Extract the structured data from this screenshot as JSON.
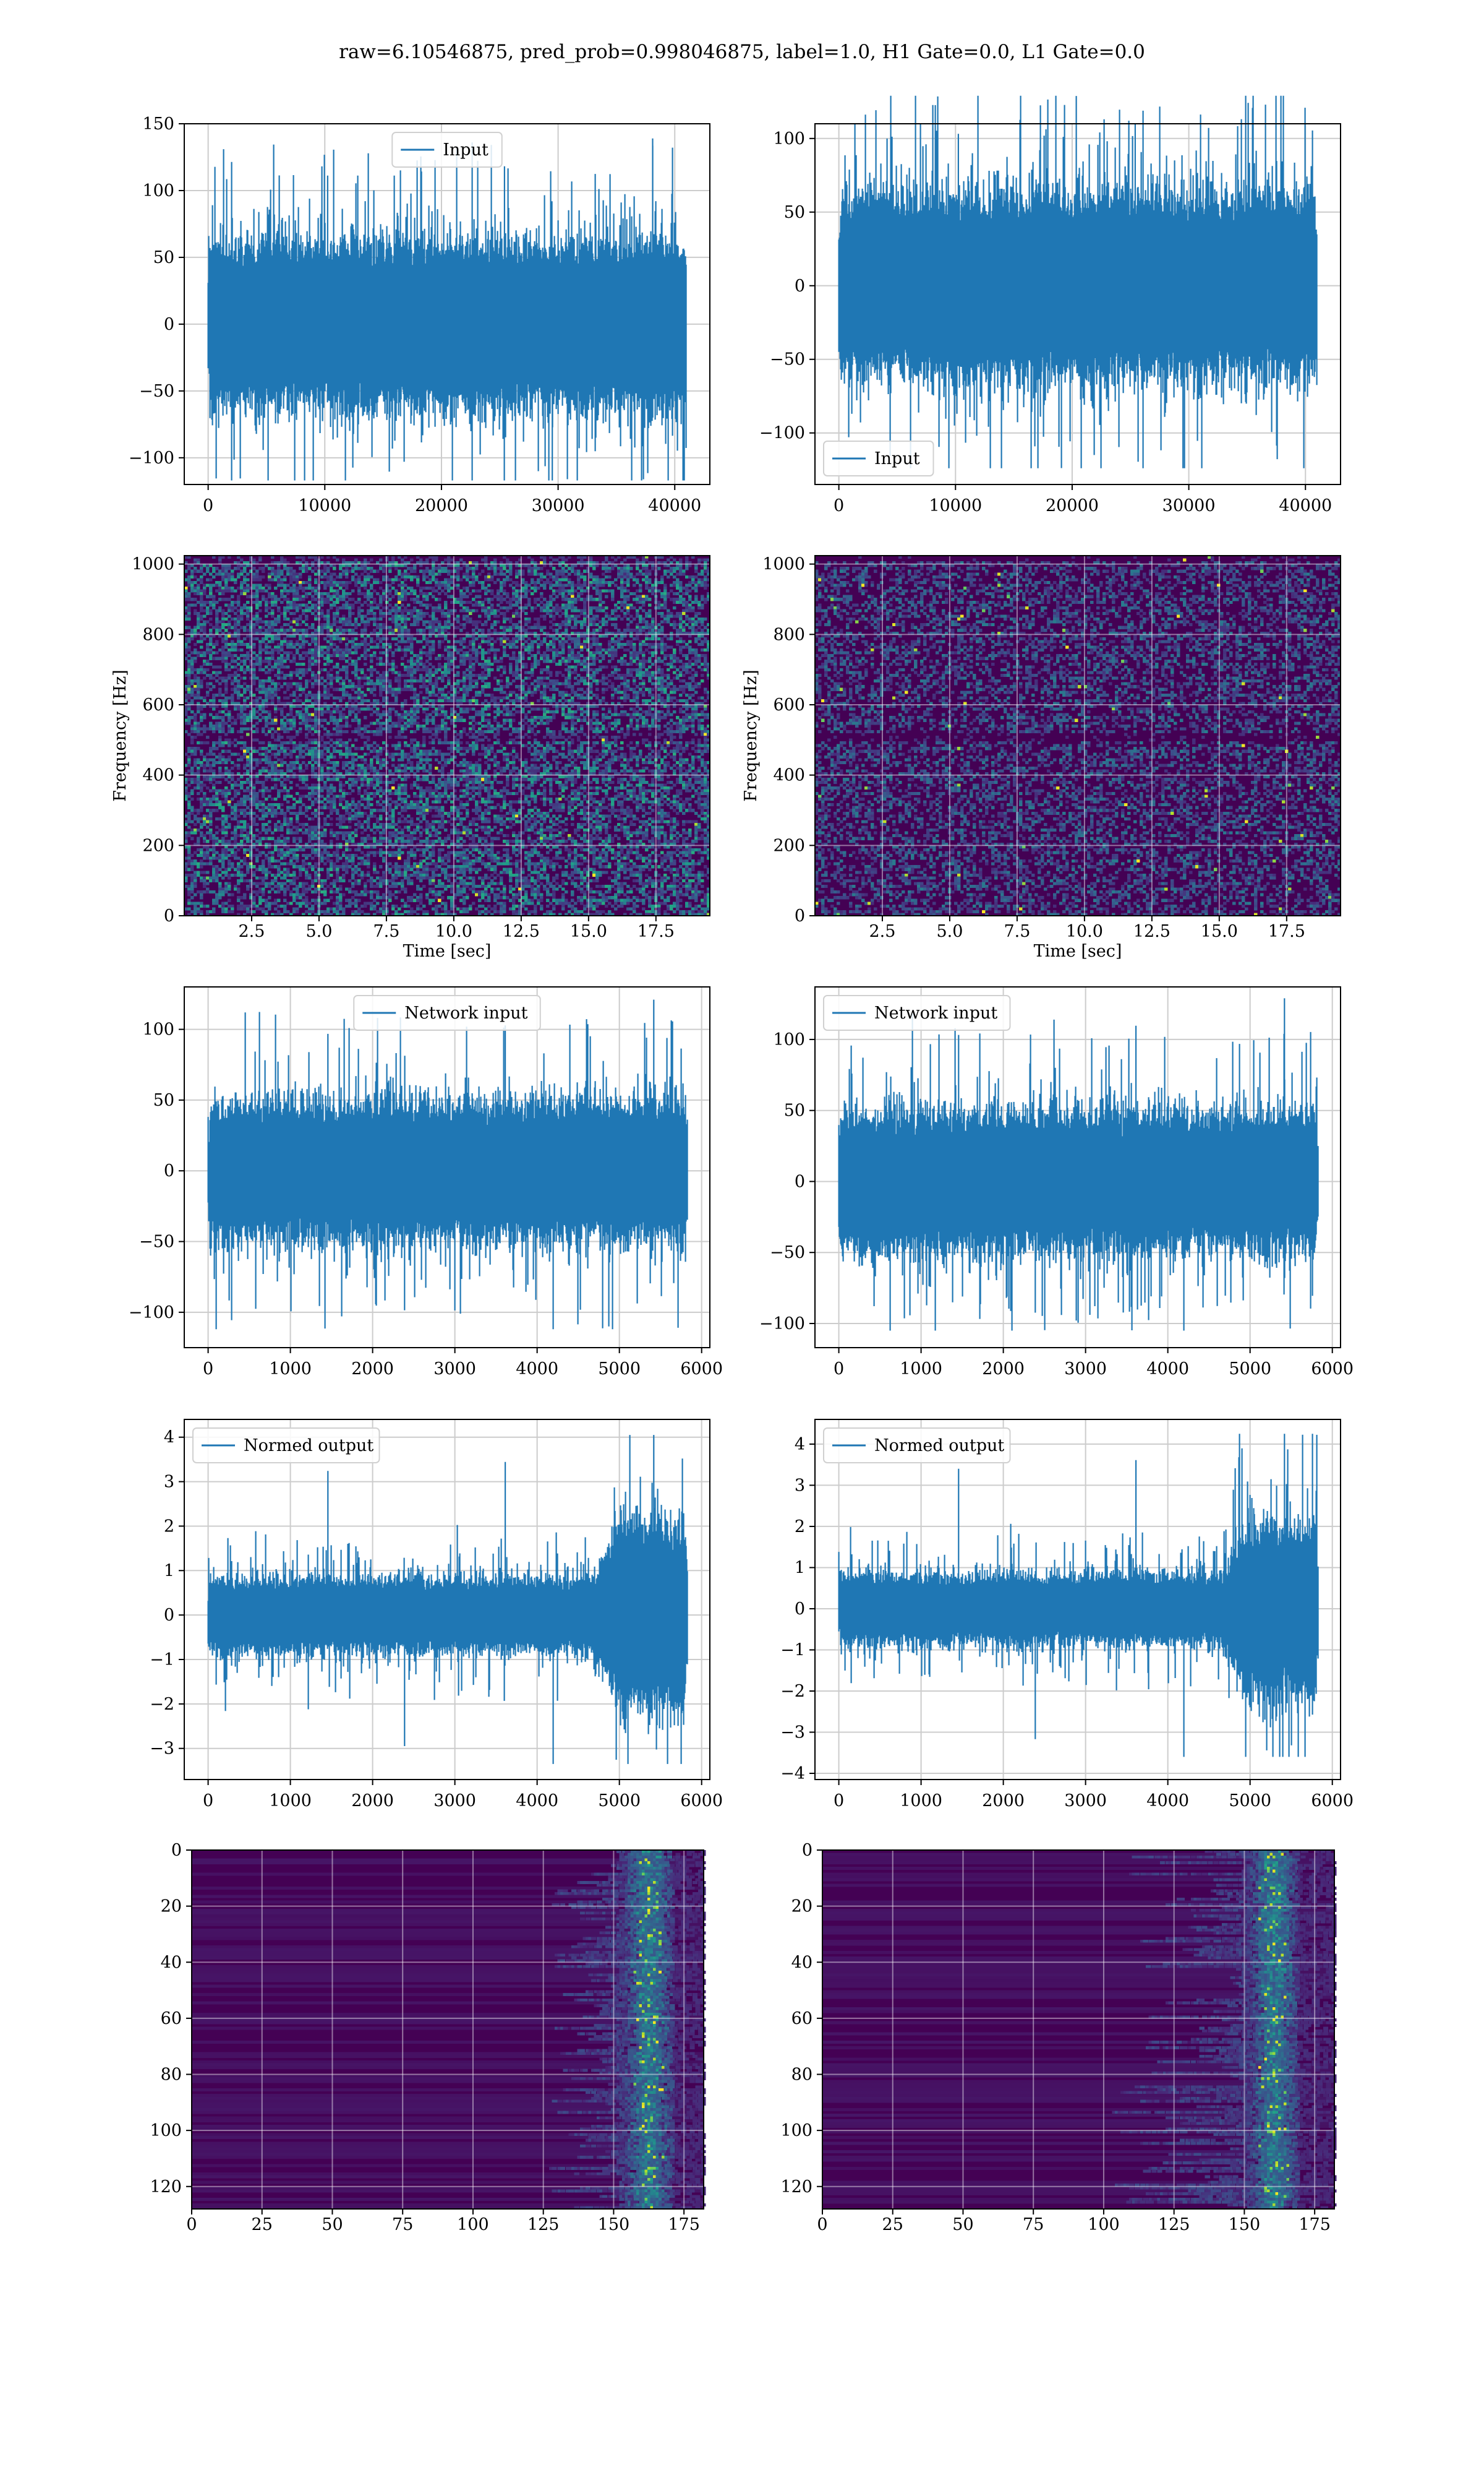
{
  "figure": {
    "title": "raw=6.10546875, pred_prob=0.998046875, label=1.0, H1 Gate=0.0, L1 Gate=0.0"
  },
  "colors": {
    "line": "#1f77b4",
    "grid": "#cccccc",
    "heat_low": "#440154",
    "heat_mid": "#21918c",
    "heat_high": "#fde725"
  },
  "chart_data": [
    {
      "id": "h1-input",
      "type": "line",
      "legend_label": "Input",
      "legend_loc": "upper center",
      "xlim": [
        -2048,
        43008
      ],
      "ylim": [
        -120,
        150
      ],
      "xticks": [
        0,
        10000,
        20000,
        30000,
        40000
      ],
      "yticks": [
        -100,
        -50,
        0,
        50,
        100,
        150
      ],
      "series": [
        {
          "x_start": 0,
          "x_end": 40960,
          "n_points": 40960,
          "band": [
            -45,
            45
          ],
          "spike_max": 139,
          "spike_min": -117
        }
      ]
    },
    {
      "id": "l1-input",
      "type": "line",
      "legend_label": "Input",
      "legend_loc": "lower left",
      "xlim": [
        -2048,
        43008
      ],
      "ylim": [
        -135,
        110
      ],
      "xticks": [
        0,
        10000,
        20000,
        30000,
        40000
      ],
      "yticks": [
        -100,
        -50,
        0,
        50,
        100
      ],
      "series": [
        {
          "x_start": 0,
          "x_end": 40960,
          "n_points": 40960,
          "band": [
            -45,
            45
          ],
          "spike_max": 129,
          "spike_min": -124
        }
      ]
    },
    {
      "id": "h1-spectrogram",
      "type": "heatmap",
      "colormap": "viridis",
      "xlabel": "Time [sec]",
      "ylabel": "Frequency [Hz]",
      "xlim": [
        0,
        19.5
      ],
      "ylim": [
        0,
        1024
      ],
      "xticks": [
        2.5,
        5.0,
        7.5,
        10.0,
        12.5,
        15.0,
        17.5
      ],
      "yticks": [
        0,
        200,
        400,
        600,
        800,
        1000
      ],
      "intensity": "medium"
    },
    {
      "id": "l1-spectrogram",
      "type": "heatmap",
      "colormap": "viridis",
      "xlabel": "Time [sec]",
      "ylabel": "Frequency [Hz]",
      "xlim": [
        0,
        19.5
      ],
      "ylim": [
        0,
        1024
      ],
      "xticks": [
        2.5,
        5.0,
        7.5,
        10.0,
        12.5,
        15.0,
        17.5
      ],
      "yticks": [
        0,
        200,
        400,
        600,
        800,
        1000
      ],
      "intensity": "low"
    },
    {
      "id": "h1-network-input",
      "type": "line",
      "legend_label": "Network input",
      "legend_loc": "upper center",
      "xlim": [
        -290,
        6100
      ],
      "ylim": [
        -125,
        130
      ],
      "xticks": [
        0,
        1000,
        2000,
        3000,
        4000,
        5000,
        6000
      ],
      "yticks": [
        -100,
        -50,
        0,
        50,
        100
      ],
      "series": [
        {
          "x_start": 0,
          "x_end": 5824,
          "n_points": 5824,
          "band": [
            -35,
            35
          ],
          "spike_max": 121,
          "spike_min": -112
        }
      ]
    },
    {
      "id": "l1-network-input",
      "type": "line",
      "legend_label": "Network input",
      "legend_loc": "upper left",
      "xlim": [
        -290,
        6100
      ],
      "ylim": [
        -117,
        137
      ],
      "xticks": [
        0,
        1000,
        2000,
        3000,
        4000,
        5000,
        6000
      ],
      "yticks": [
        -100,
        -50,
        0,
        50,
        100
      ],
      "series": [
        {
          "x_start": 0,
          "x_end": 5824,
          "n_points": 5824,
          "band": [
            -35,
            35
          ],
          "spike_max": 129,
          "spike_min": -105
        }
      ]
    },
    {
      "id": "h1-normed-output",
      "type": "line",
      "legend_label": "Normed output",
      "legend_loc": "upper left",
      "xlim": [
        -290,
        6100
      ],
      "ylim": [
        -3.7,
        4.4
      ],
      "xticks": [
        0,
        1000,
        2000,
        3000,
        4000,
        5000,
        6000
      ],
      "yticks": [
        -3,
        -2,
        -1,
        0,
        1,
        2,
        3,
        4
      ],
      "series": [
        {
          "x_start": 0,
          "x_end": 5824,
          "n_points": 5824,
          "band": [
            -0.6,
            0.6
          ],
          "burst_start": 4700,
          "burst_band": [
            -1.5,
            1.5
          ],
          "spike_max": 4.05,
          "spike_min": -3.35
        }
      ]
    },
    {
      "id": "l1-normed-output",
      "type": "line",
      "legend_label": "Normed output",
      "legend_loc": "upper left",
      "xlim": [
        -290,
        6100
      ],
      "ylim": [
        -4.15,
        4.6
      ],
      "xticks": [
        0,
        1000,
        2000,
        3000,
        4000,
        5000,
        6000
      ],
      "yticks": [
        -4,
        -3,
        -2,
        -1,
        0,
        1,
        2,
        3,
        4
      ],
      "series": [
        {
          "x_start": 0,
          "x_end": 5824,
          "n_points": 5824,
          "band": [
            -0.6,
            0.6
          ],
          "burst_start": 4650,
          "burst_band": [
            -1.5,
            1.5
          ],
          "spike_max": 4.25,
          "spike_min": -3.6
        }
      ]
    },
    {
      "id": "h1-feature-map",
      "type": "heatmap",
      "colormap": "viridis",
      "xlim": [
        0,
        182
      ],
      "ylim": [
        128,
        0
      ],
      "xticks": [
        0,
        25,
        50,
        75,
        100,
        125,
        150,
        175
      ],
      "yticks": [
        0,
        20,
        40,
        60,
        80,
        100,
        120
      ],
      "activity_start": 125,
      "peak_column": 162
    },
    {
      "id": "l1-feature-map",
      "type": "heatmap",
      "colormap": "viridis",
      "xlim": [
        0,
        182
      ],
      "ylim": [
        128,
        0
      ],
      "xticks": [
        0,
        25,
        50,
        75,
        100,
        125,
        150,
        175
      ],
      "yticks": [
        0,
        20,
        40,
        60,
        80,
        100,
        120
      ],
      "activity_start": 100,
      "peak_column": 160
    }
  ]
}
